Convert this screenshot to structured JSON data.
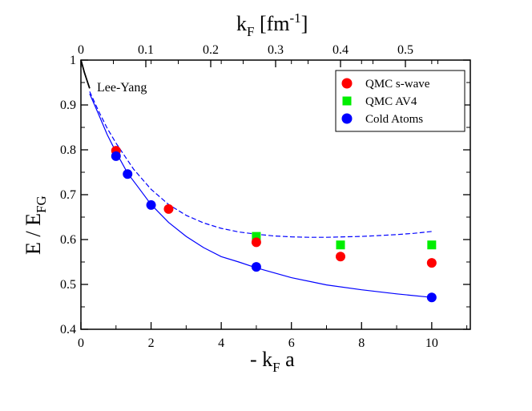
{
  "chart_data": {
    "type": "scatter",
    "xlabel": {
      "prefix": "- k",
      "sub": "F",
      "suffix": " a"
    },
    "ylabel": {
      "prefix": "E / E",
      "sub": "FG"
    },
    "top_xlabel": {
      "prefix": "k",
      "sub": "F",
      "suffix": " [fm",
      "sup": "-1",
      "end": "]"
    },
    "xlim": [
      0,
      11.1
    ],
    "ylim": [
      0.4,
      1.0
    ],
    "top_xlim": [
      0,
      0.6
    ],
    "x_ticks": [
      0,
      2,
      4,
      6,
      8,
      10
    ],
    "x_tick_labels": [
      "0",
      "2",
      "4",
      "6",
      "8",
      "10"
    ],
    "y_ticks": [
      0.4,
      0.5,
      0.6,
      0.7,
      0.8,
      0.9,
      1.0
    ],
    "y_tick_labels": [
      "0.4",
      "0.5",
      "0.6",
      "0.7",
      "0.8",
      "0.9",
      "1"
    ],
    "top_ticks": [
      0,
      0.1,
      0.2,
      0.3,
      0.4,
      0.5
    ],
    "top_tick_labels": [
      "0",
      "0.1",
      "0.2",
      "0.3",
      "0.4",
      "0.5"
    ],
    "grid": false,
    "legend_position": "top-right",
    "annotation": "Lee-Yang",
    "series": [
      {
        "name": "QMC s-wave",
        "marker": "circle",
        "color": "#ff0000",
        "x": [
          1.0,
          2.5,
          5.0,
          7.4,
          10.0
        ],
        "y": [
          0.798,
          0.668,
          0.594,
          0.562,
          0.548
        ]
      },
      {
        "name": "QMC AV4",
        "marker": "square",
        "color": "#00ee00",
        "x": [
          5.0,
          7.4,
          10.0
        ],
        "y": [
          0.607,
          0.588,
          0.588
        ]
      },
      {
        "name": "Cold Atoms",
        "marker": "circle",
        "color": "#0000ff",
        "x": [
          1.0,
          1.33,
          2.0,
          5.0,
          10.0
        ],
        "y": [
          0.786,
          0.746,
          0.677,
          0.539,
          0.471
        ]
      }
    ],
    "curves": [
      {
        "style": "solid",
        "color": "#0000ff",
        "x": [
          0.25,
          0.5,
          0.75,
          1.0,
          1.33,
          1.6,
          2.0,
          2.5,
          3.0,
          3.5,
          4.0,
          4.5,
          5.0,
          6.0,
          7.0,
          8.0,
          9.0,
          10.0
        ],
        "y": [
          0.925,
          0.88,
          0.834,
          0.795,
          0.748,
          0.72,
          0.678,
          0.638,
          0.607,
          0.582,
          0.562,
          0.55,
          0.537,
          0.515,
          0.499,
          0.488,
          0.479,
          0.471
        ]
      },
      {
        "style": "dashed",
        "color": "#0000ff",
        "x": [
          0.25,
          0.5,
          0.75,
          1.0,
          1.5,
          2.0,
          2.5,
          3.0,
          3.5,
          4.0,
          4.5,
          5.0,
          5.5,
          6.0,
          6.5,
          7.0,
          7.5,
          8.0,
          8.5,
          9.0,
          9.5,
          10.0
        ],
        "y": [
          0.93,
          0.887,
          0.848,
          0.815,
          0.757,
          0.712,
          0.678,
          0.654,
          0.637,
          0.625,
          0.617,
          0.612,
          0.608,
          0.606,
          0.605,
          0.605,
          0.606,
          0.607,
          0.609,
          0.611,
          0.614,
          0.618
        ]
      },
      {
        "style": "solid",
        "color": "#000000",
        "x": [
          0.0,
          0.05,
          0.1,
          0.15,
          0.2,
          0.25
        ],
        "y": [
          1.0,
          0.986,
          0.972,
          0.96,
          0.948,
          0.937
        ]
      }
    ]
  }
}
